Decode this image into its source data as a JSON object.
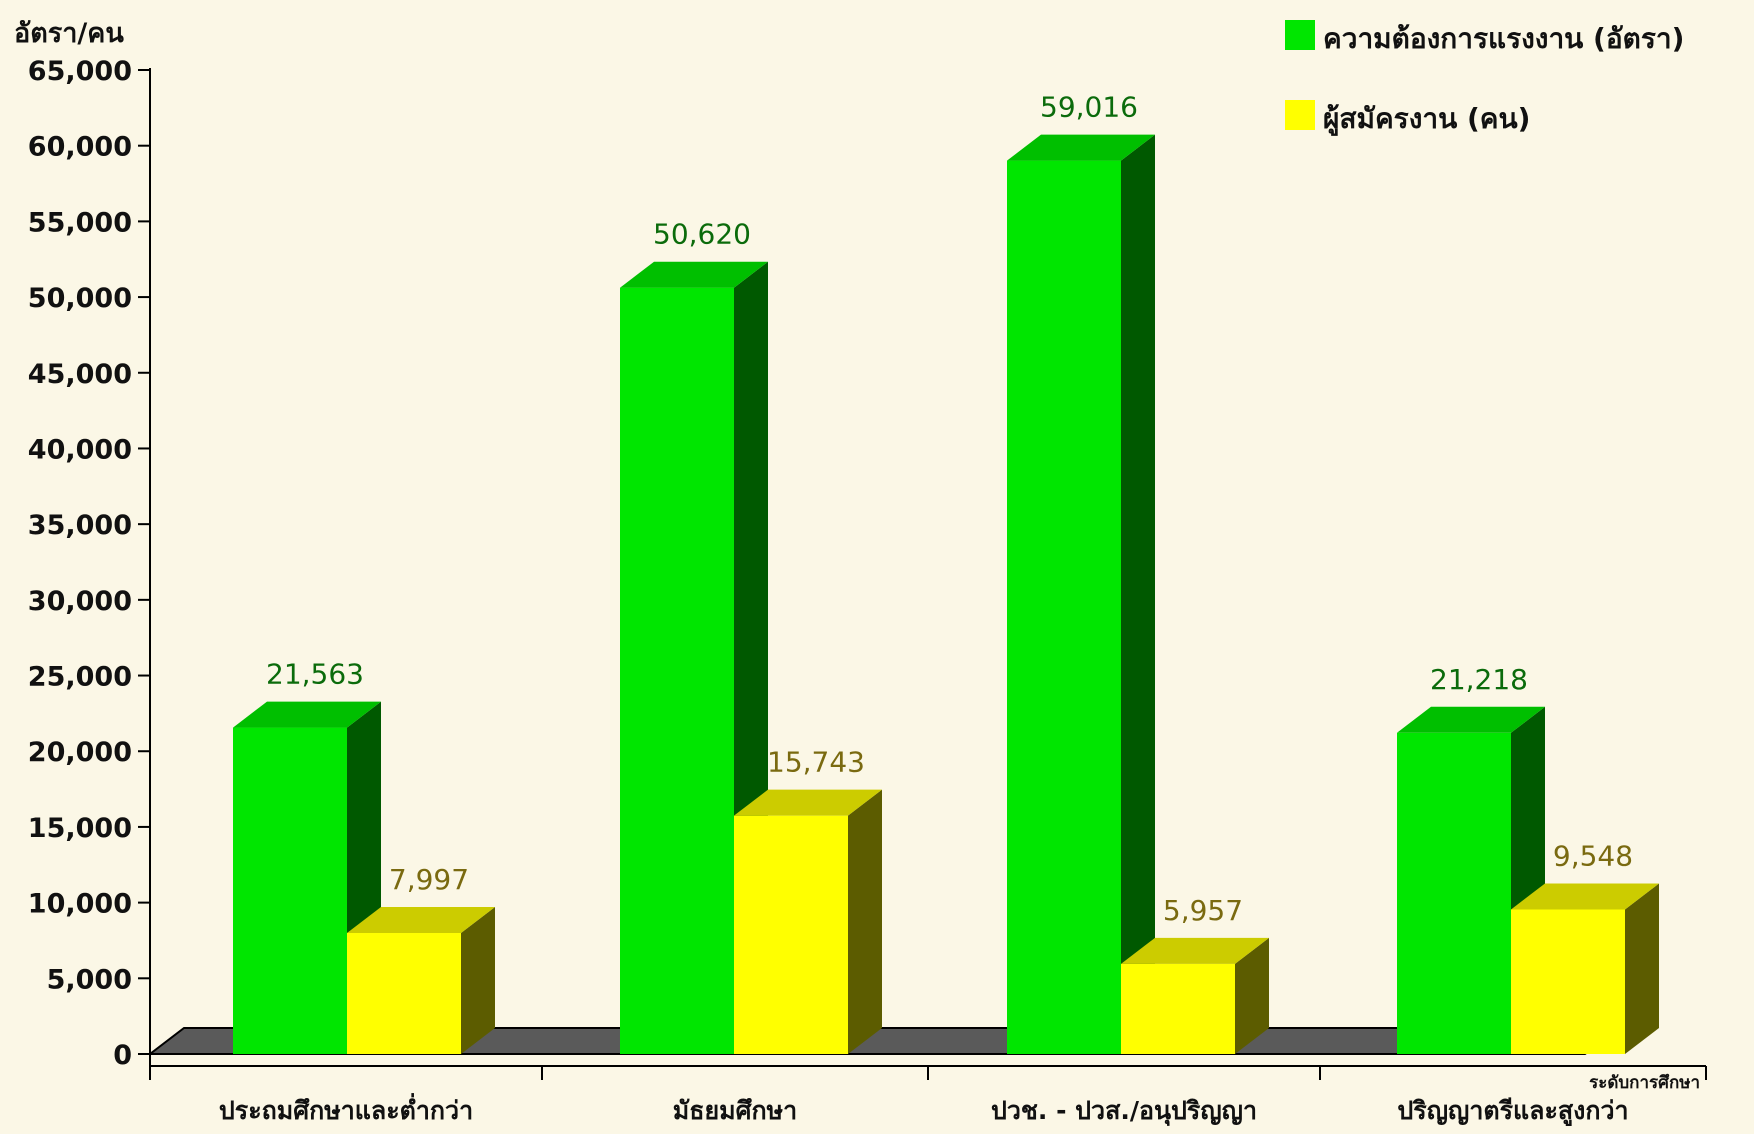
{
  "chart_data": {
    "type": "bar",
    "ylabel": "อัตรา/คน",
    "xlabel": "ระดับการศึกษา",
    "ylim": [
      0,
      65000
    ],
    "yticks": [
      0,
      5000,
      10000,
      15000,
      20000,
      25000,
      30000,
      35000,
      40000,
      45000,
      50000,
      55000,
      60000,
      65000
    ],
    "ytick_labels": [
      "0",
      "5,000",
      "10,000",
      "15,000",
      "20,000",
      "25,000",
      "30,000",
      "35,000",
      "40,000",
      "45,000",
      "50,000",
      "55,000",
      "60,000",
      "65,000"
    ],
    "categories": [
      "ประถมศึกษาและต่ำกว่า",
      "มัธยมศึกษา",
      "ปวช. - ปวส./อนุปริญญา",
      "ปริญญาตรีและสูงกว่า"
    ],
    "series": [
      {
        "name": "ความต้องการแรงงาน (อัตรา)",
        "values": [
          21563,
          50620,
          59016,
          21218
        ],
        "labels": [
          "21,563",
          "50,620",
          "59,016",
          "21,218"
        ],
        "color": "#00e600",
        "top_color": "#00bf00",
        "side_color": "#005900",
        "label_color": "#0b6b0b"
      },
      {
        "name": "ผู้สมัครงาน (คน)",
        "values": [
          7997,
          15743,
          5957,
          9548
        ],
        "labels": [
          "7,997",
          "15,743",
          "5,957",
          "9,548"
        ],
        "color": "#ffff00",
        "top_color": "#cccc00",
        "side_color": "#5c5c00",
        "label_color": "#7a6a10"
      }
    ],
    "legend_position": "top-right",
    "grid": false,
    "style": "3d-bar"
  }
}
